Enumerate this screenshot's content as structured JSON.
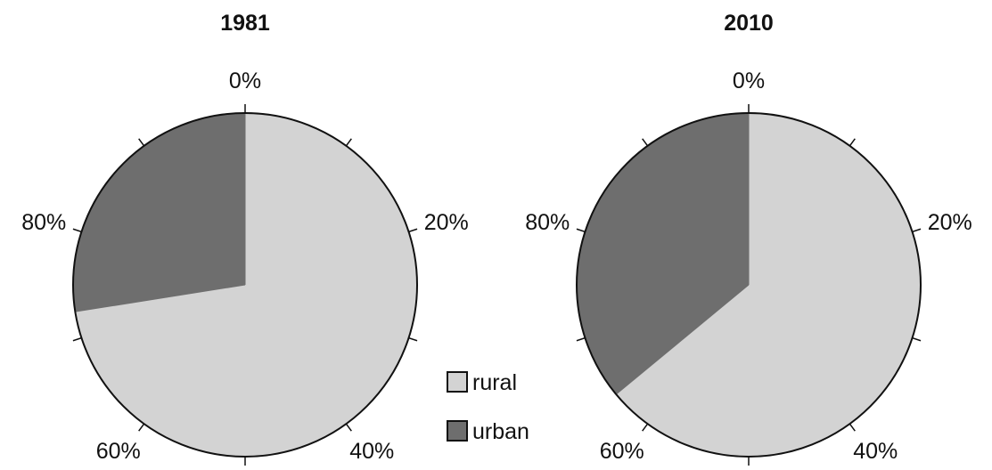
{
  "chart_data": [
    {
      "type": "pie",
      "title": "1981",
      "start_angle": "top",
      "direction": "clockwise",
      "slices": [
        {
          "name": "rural",
          "value": 72.5,
          "color": "#d3d3d3"
        },
        {
          "name": "urban",
          "value": 27.5,
          "color": "#6e6e6e"
        }
      ],
      "tick_labels": [
        "0%",
        "20%",
        "40%",
        "60%",
        "80%"
      ],
      "tick_step_percent": 10
    },
    {
      "type": "pie",
      "title": "2010",
      "start_angle": "top",
      "direction": "clockwise",
      "slices": [
        {
          "name": "rural",
          "value": 64,
          "color": "#d3d3d3"
        },
        {
          "name": "urban",
          "value": 36,
          "color": "#6e6e6e"
        }
      ],
      "tick_labels": [
        "0%",
        "20%",
        "40%",
        "60%",
        "80%"
      ],
      "tick_step_percent": 10
    }
  ],
  "legend": {
    "placement": "bottom-center",
    "items": [
      {
        "label": "rural",
        "color": "#d3d3d3"
      },
      {
        "label": "urban",
        "color": "#6e6e6e"
      }
    ]
  }
}
